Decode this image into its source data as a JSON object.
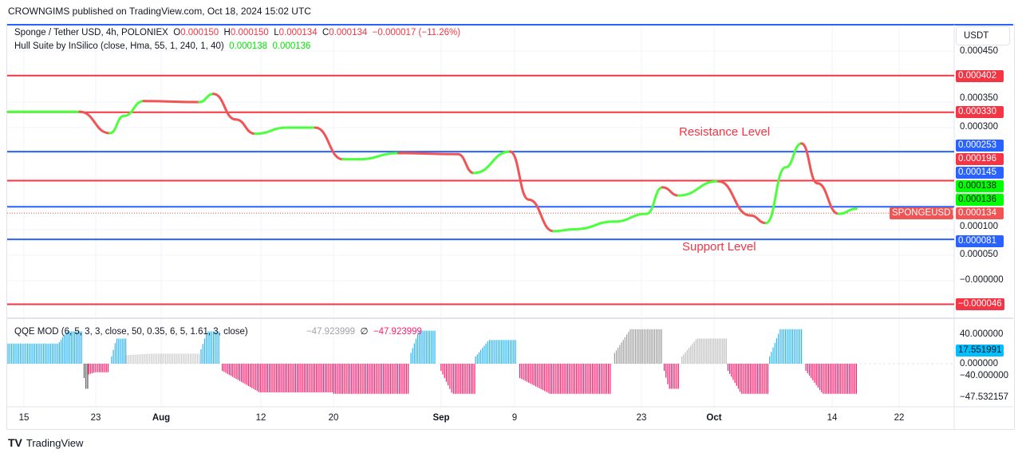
{
  "header": {
    "published": "CROWNGIMS published on TradingView.com, Oct 18, 2024 15:02 UTC"
  },
  "legend": {
    "symbol": "Sponge / Tether USD, 4h, POLONIEX",
    "o_label": "O",
    "o": "0.000150",
    "h_label": "H",
    "h": "0.000150",
    "l_label": "L",
    "l": "0.000134",
    "c_label": "C",
    "c": "0.000134",
    "change": "−0.000017 (−11.26%)",
    "hull_name": "Hull Suite by InSilico (close, Hma, 55, 1, 240, 1, 40)",
    "hull_v1": "0.000138",
    "hull_v2": "0.000136"
  },
  "qqe_legend": {
    "name": "QQE MOD (6, 5, 3, 3, close, 50, 0.35, 6, 5, 1.61, 3, close)",
    "v1": "−47.923999",
    "sym": "∅",
    "v2": "−47.923999"
  },
  "axis": {
    "currency": "USDT",
    "ticks": [
      "0.000450",
      "0.000350",
      "0.000300",
      "0.000100",
      "0.000050",
      "−0.000000"
    ],
    "qqe_ticks": [
      "40.000000",
      "0.000000",
      "−40.000000"
    ]
  },
  "price_tags": [
    {
      "text": "0.000402",
      "value": 0.000402,
      "color": "#f23645"
    },
    {
      "text": "0.000330",
      "value": 0.00033,
      "color": "#f23645"
    },
    {
      "text": "0.000253",
      "value": 0.000253,
      "color": "#2962ff"
    },
    {
      "text": "0.000196",
      "value": 0.000196,
      "color": "#f23645"
    },
    {
      "text": "0.000145",
      "value": 0.000145,
      "color": "#2962ff"
    },
    {
      "text": "0.000138",
      "value": 0.000138,
      "color": "#00ff00"
    },
    {
      "text": "0.000136",
      "value": 0.000136,
      "color": "#00ff00"
    },
    {
      "text": "0.000134",
      "value": 0.000134,
      "color": "#f05454"
    },
    {
      "text": "0.000081",
      "value": 8.1e-05,
      "color": "#2962ff"
    },
    {
      "text": "−0.000046",
      "value": -4.6e-05,
      "color": "#f23645"
    }
  ],
  "symbol_tag": "SPONGEUSDT",
  "qqe_tags": {
    "current": "17.551991",
    "min": "−47.532157"
  },
  "annotations": {
    "resistance": "Resistance Level",
    "support": "Support Level"
  },
  "time_labels": [
    "15",
    "23",
    "Aug",
    "12",
    "20",
    "Sep",
    "9",
    "23",
    "Oct",
    "14",
    "22"
  ],
  "footer": {
    "brand": "TradingView"
  },
  "chart_data": {
    "type": "line",
    "title": "Sponge / Tether USD, 4h, POLONIEX",
    "ylim": [
      -6e-05,
      0.00047
    ],
    "horizontal_levels": [
      {
        "value": 0.000402,
        "color": "#f23645"
      },
      {
        "value": 0.00033,
        "color": "#f23645"
      },
      {
        "value": 0.000253,
        "color": "#2962ff"
      },
      {
        "value": 0.000196,
        "color": "#f23645"
      },
      {
        "value": 0.000145,
        "color": "#2962ff"
      },
      {
        "value": 8.1e-05,
        "color": "#2962ff"
      },
      {
        "value": -4.6e-05,
        "color": "#f23645"
      }
    ],
    "hull_series": {
      "name": "Hull Suite",
      "x_days_from_jul15": [
        -1.8,
        6.3,
        9.7,
        11.3,
        13.5,
        19.8,
        21.4,
        23.9,
        26.1,
        29.7,
        32.9,
        36,
        37.8,
        42.3,
        49,
        50.8,
        54.9,
        57,
        59.8,
        62.2,
        66.7,
        70.3,
        72.1,
        73.9,
        78.4,
        82,
        83.8,
        86,
        87.8,
        89.6,
        92,
        94
      ],
      "values": [
        0.000331,
        0.000331,
        0.000289,
        0.000323,
        0.000352,
        0.00035,
        0.000366,
        0.000316,
        0.000288,
        0.0003,
        0.0003,
        0.000238,
        0.000238,
        0.00025,
        0.000248,
        0.000211,
        0.000253,
        0.000159,
        9.7e-05,
        0.000101,
        0.000116,
        0.000131,
        0.000183,
        0.000167,
        0.000195,
        0.000128,
        0.000113,
        0.000222,
        0.000269,
        0.000191,
        0.000131,
        0.000141
      ]
    },
    "qqe_histogram": {
      "name": "QQE MOD",
      "ylim": [
        -50,
        50
      ],
      "segments": [
        {
          "from": -1.8,
          "to": 4,
          "start": 28,
          "end": 28,
          "color": "#29b6f6"
        },
        {
          "from": 4,
          "to": 6.5,
          "start": 30,
          "end": 45,
          "color": "#29b6f6"
        },
        {
          "from": 6.8,
          "to": 7.2,
          "start": -20,
          "end": -35,
          "color": "#555555"
        },
        {
          "from": 7.3,
          "to": 9.5,
          "start": -15,
          "end": -12,
          "color": "#ff1a6b"
        },
        {
          "from": 9.9,
          "to": 11.5,
          "start": 10,
          "end": 35,
          "color": "#29b6f6"
        },
        {
          "from": 11.6,
          "to": 19.8,
          "start": 12,
          "end": 14,
          "color": "#cccccc"
        },
        {
          "from": 20,
          "to": 22,
          "start": 20,
          "end": 45,
          "color": "#29b6f6"
        },
        {
          "from": 22.4,
          "to": 35,
          "start": -10,
          "end": -40,
          "color": "#ff1a6b"
        },
        {
          "from": 35,
          "to": 43.4,
          "start": -42,
          "end": -42,
          "color": "#ff1a6b"
        },
        {
          "from": 43.7,
          "to": 46.4,
          "start": 15,
          "end": 46,
          "color": "#29b6f6"
        },
        {
          "from": 47.1,
          "to": 50.9,
          "start": -10,
          "end": -42,
          "color": "#ff1a6b"
        },
        {
          "from": 51,
          "to": 55.5,
          "start": 10,
          "end": 33,
          "color": "#29b6f6"
        },
        {
          "from": 56,
          "to": 66.2,
          "start": -20,
          "end": -42,
          "color": "#ff1a6b"
        },
        {
          "from": 66.7,
          "to": 72,
          "start": 15,
          "end": 48,
          "color": "#9e9e9e"
        },
        {
          "from": 72.3,
          "to": 73.9,
          "start": -10,
          "end": -35,
          "color": "#ff1a6b"
        },
        {
          "from": 74.3,
          "to": 79.3,
          "start": 10,
          "end": 35,
          "color": "#bdbdbd"
        },
        {
          "from": 79.5,
          "to": 84,
          "start": -10,
          "end": -42,
          "color": "#ff1a6b"
        },
        {
          "from": 84.2,
          "to": 87.8,
          "start": 10,
          "end": 48,
          "color": "#29b6f6"
        },
        {
          "from": 88.3,
          "to": 94,
          "start": -10,
          "end": -42,
          "color": "#ff1a6b"
        }
      ]
    }
  }
}
